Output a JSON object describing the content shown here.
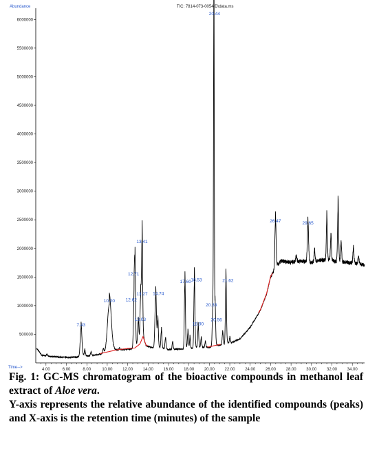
{
  "chart_data": {
    "type": "line",
    "title": "TIC: 7814-073-0054 D\\data.ms",
    "ylabel": "Abundance",
    "xlabel": "Time-->",
    "xlim": [
      3.0,
      35.2
    ],
    "ylim": [
      0,
      6100000
    ],
    "x_ticks": [
      "4.00",
      "6.00",
      "8.00",
      "10.00",
      "12.00",
      "14.00",
      "16.00",
      "18.00",
      "20.00",
      "22.00",
      "24.00",
      "26.00",
      "28.00",
      "30.00",
      "32.00",
      "34.00"
    ],
    "x_tick_values": [
      4,
      6,
      8,
      10,
      12,
      14,
      16,
      18,
      20,
      22,
      24,
      26,
      28,
      30,
      32,
      34
    ],
    "y_ticks": [
      "500000",
      "1000000",
      "1500000",
      "2000000",
      "2500000",
      "3000000",
      "3500000",
      "4000000",
      "4500000",
      "5000000",
      "5500000",
      "6000000"
    ],
    "y_tick_values": [
      500000,
      1000000,
      1500000,
      2000000,
      2500000,
      3000000,
      3500000,
      4000000,
      4500000,
      5000000,
      5500000,
      6000000
    ],
    "baseline": [
      [
        3.1,
        250000
      ],
      [
        3.6,
        130000
      ],
      [
        4.5,
        110000
      ],
      [
        6.0,
        95000
      ],
      [
        7.0,
        100000
      ],
      [
        8.0,
        120000
      ],
      [
        9.0,
        140000
      ],
      [
        10.0,
        180000
      ],
      [
        11.0,
        220000
      ],
      [
        12.0,
        240000
      ],
      [
        12.7,
        250000
      ],
      [
        13.2,
        320000
      ],
      [
        13.5,
        450000
      ],
      [
        13.8,
        300000
      ],
      [
        14.3,
        270000
      ],
      [
        15.0,
        260000
      ],
      [
        16.0,
        230000
      ],
      [
        17.0,
        240000
      ],
      [
        18.0,
        250000
      ],
      [
        19.0,
        260000
      ],
      [
        20.0,
        270000
      ],
      [
        20.7,
        300000
      ],
      [
        21.5,
        320000
      ],
      [
        22.0,
        340000
      ],
      [
        23.0,
        420000
      ],
      [
        24.0,
        620000
      ],
      [
        25.0,
        920000
      ],
      [
        25.6,
        1200000
      ],
      [
        26.0,
        1500000
      ],
      [
        26.5,
        1650000
      ],
      [
        27.0,
        1780000
      ],
      [
        28.0,
        1760000
      ],
      [
        29.0,
        1780000
      ],
      [
        30.0,
        1750000
      ],
      [
        31.0,
        1800000
      ],
      [
        32.0,
        1780000
      ],
      [
        33.0,
        1760000
      ],
      [
        34.0,
        1750000
      ],
      [
        35.0,
        1720000
      ],
      [
        35.2,
        1700000
      ]
    ],
    "peaks": [
      {
        "label": "7.43",
        "x": 7.43,
        "y": 600000,
        "w": 0.08
      },
      {
        "label": "10.20",
        "x": 10.2,
        "y": 1020000,
        "w": 0.18
      },
      {
        "label": "12.62",
        "x": 12.62,
        "y": 1030000,
        "w": 0.06
      },
      {
        "label": "12.71",
        "x": 12.71,
        "y": 1490000,
        "w": 0.05
      },
      {
        "label": "13.03",
        "x": 13.03,
        "y": 710000,
        "w": 0.06
      },
      {
        "label": "13.27",
        "x": 13.27,
        "y": 1140000,
        "w": 0.06
      },
      {
        "label": "13.41",
        "x": 13.41,
        "y": 2060000,
        "w": 0.05
      },
      {
        "label": "14.74",
        "x": 14.74,
        "y": 1150000,
        "w": 0.07
      },
      {
        "label": "17.60",
        "x": 17.6,
        "y": 1360000,
        "w": 0.05
      },
      {
        "label": "18.53",
        "x": 18.53,
        "y": 1390000,
        "w": 0.05
      },
      {
        "label": "18.90",
        "x": 18.9,
        "y": 620000,
        "w": 0.05
      },
      {
        "label": "20.33",
        "x": 20.33,
        "y": 950000,
        "w": 0.05
      },
      {
        "label": "20.44",
        "x": 20.44,
        "y": 6040000,
        "w": 0.035
      },
      {
        "label": "20.56",
        "x": 20.56,
        "y": 850000,
        "w": 0.05
      },
      {
        "label": "21.62",
        "x": 21.62,
        "y": 1380000,
        "w": 0.05
      },
      {
        "label": "26.47",
        "x": 26.47,
        "y": 2420000,
        "w": 0.06
      },
      {
        "label": "29.65",
        "x": 29.65,
        "y": 2380000,
        "w": 0.06
      }
    ],
    "unlabeled_peaks": [
      [
        4.1,
        150000,
        0.06
      ],
      [
        7.8,
        220000,
        0.05
      ],
      [
        8.4,
        190000,
        0.05
      ],
      [
        9.6,
        240000,
        0.06
      ],
      [
        11.2,
        260000,
        0.05
      ],
      [
        14.95,
        700000,
        0.05
      ],
      [
        15.3,
        560000,
        0.05
      ],
      [
        15.7,
        420000,
        0.05
      ],
      [
        16.4,
        360000,
        0.05
      ],
      [
        17.9,
        520000,
        0.05
      ],
      [
        18.1,
        430000,
        0.04
      ],
      [
        19.2,
        420000,
        0.05
      ],
      [
        19.6,
        360000,
        0.05
      ],
      [
        21.3,
        520000,
        0.05
      ],
      [
        22.0,
        440000,
        0.05
      ],
      [
        31.5,
        2480000,
        0.05
      ],
      [
        31.9,
        2200000,
        0.05
      ],
      [
        32.6,
        2700000,
        0.05
      ],
      [
        32.9,
        2050000,
        0.05
      ],
      [
        34.1,
        1980000,
        0.05
      ],
      [
        34.6,
        1850000,
        0.05
      ],
      [
        30.3,
        1950000,
        0.05
      ],
      [
        28.5,
        1880000,
        0.05
      ]
    ],
    "colors": {
      "trace": "#000000",
      "baseline_fit": "#e02020",
      "labels": "#2255cc",
      "axis": "#000000"
    }
  },
  "caption": {
    "fig_prefix": "Fig. 1: GC-MS chromatogram of the bioactive compounds in methanol leaf extract of ",
    "fig_species": "Aloe vera",
    "fig_suffix": ".",
    "description": "Y-axis represents the relative abundance of the identified compounds (peaks) and X-axis is the retention time (minutes) of the sample"
  }
}
